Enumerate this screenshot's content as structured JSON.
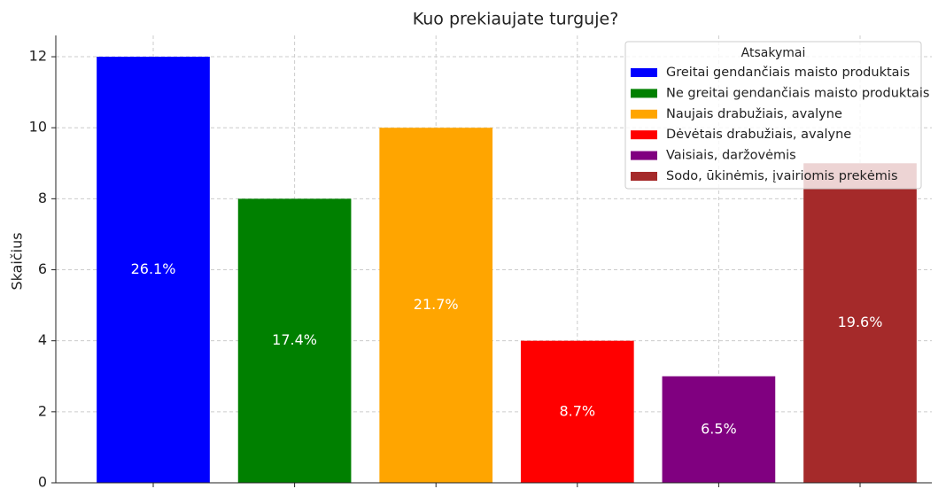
{
  "chart_data": {
    "type": "bar",
    "title": "Kuo prekiaujate turguje?",
    "ylabel": "Skaičius",
    "categories": [
      "Greitai gendančiais maisto produktais",
      "Ne greitai gendančiais maisto produktais",
      "Naujais drabužiais, avalyne",
      "Dėvėtais drabužiais, avalyne",
      "Vaisiais, daržovėmis",
      "Sodo, ūkinėmis, įvairiomis prekėmis"
    ],
    "values": [
      12,
      8,
      10,
      4,
      3,
      9
    ],
    "percent_labels": [
      "26.1%",
      "17.4%",
      "21.7%",
      "8.7%",
      "6.5%",
      "19.6%"
    ],
    "colors": [
      "#0000ff",
      "#008000",
      "#ffa500",
      "#ff0000",
      "#800080",
      "#a52a2a"
    ],
    "ylim": [
      0,
      12.6
    ],
    "yticks": [
      0,
      2,
      4,
      6,
      8,
      10,
      12
    ],
    "grid": true,
    "legend": {
      "title": "Atsakymai",
      "position": "upper right"
    }
  }
}
